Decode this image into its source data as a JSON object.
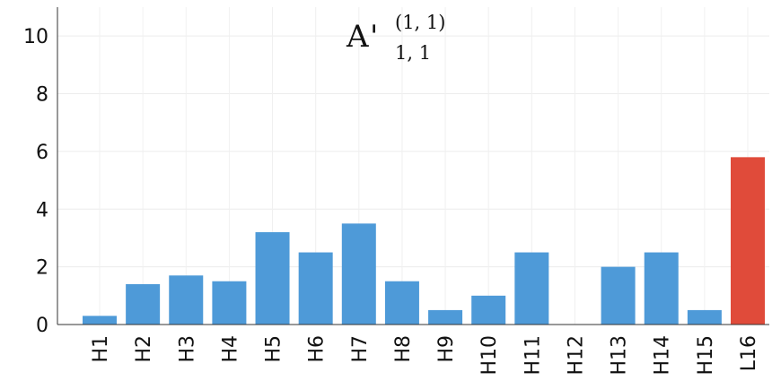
{
  "chart_data": {
    "type": "bar",
    "title": {
      "base": "A",
      "prime": "'",
      "superscript": "(1, 1)",
      "subscript": "1, 1"
    },
    "categories": [
      "H1",
      "H2",
      "H3",
      "H4",
      "H5",
      "H6",
      "H7",
      "H8",
      "H9",
      "H10",
      "H11",
      "H12",
      "H13",
      "H14",
      "H15",
      "L16"
    ],
    "values": [
      0.3,
      1.4,
      1.7,
      1.5,
      3.2,
      2.5,
      3.5,
      1.5,
      0.5,
      1.0,
      2.5,
      0.0,
      2.0,
      2.5,
      0.5,
      5.8
    ],
    "bar_colors": [
      "#4e9ad8",
      "#4e9ad8",
      "#4e9ad8",
      "#4e9ad8",
      "#4e9ad8",
      "#4e9ad8",
      "#4e9ad8",
      "#4e9ad8",
      "#4e9ad8",
      "#4e9ad8",
      "#4e9ad8",
      "#4e9ad8",
      "#4e9ad8",
      "#4e9ad8",
      "#4e9ad8",
      "#e04b3a"
    ],
    "ylim": [
      0,
      11
    ],
    "yticks": [
      "0",
      "2",
      "4",
      "6",
      "8",
      "10"
    ],
    "xlabel": "",
    "ylabel": "",
    "grid": true,
    "legend": "none"
  }
}
